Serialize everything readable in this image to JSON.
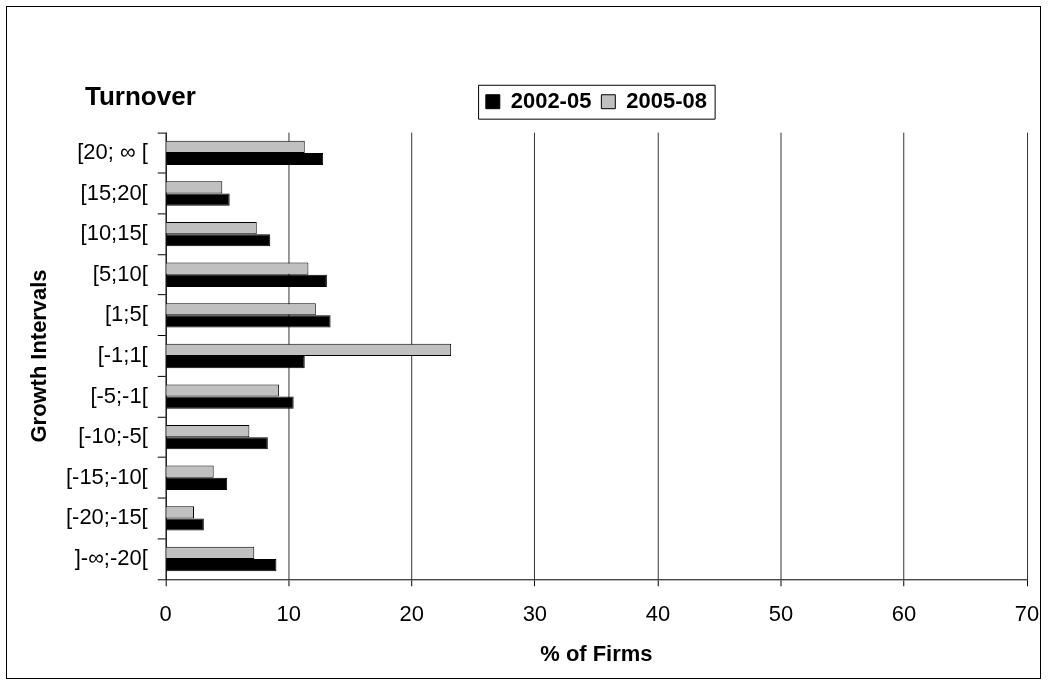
{
  "chart_data": {
    "type": "bar",
    "orientation": "horizontal",
    "title": "Turnover",
    "xlabel": "% of Firms",
    "ylabel": "Growth Intervals",
    "categories": [
      "[20; ∞ [",
      "[15;20[",
      "[10;15[",
      "[5;10[",
      "[1;5[",
      "[-1;1[",
      "[-5;-1[",
      "[-10;-5[",
      "[-15;-10[",
      "[-20;-15[",
      "]-∞;-20["
    ],
    "series": [
      {
        "name": "2002-05",
        "color": "#000000",
        "values": [
          12.8,
          5.2,
          8.5,
          13.1,
          13.4,
          11.3,
          10.4,
          8.3,
          5.0,
          3.1,
          9.0
        ]
      },
      {
        "name": "2005-08",
        "color": "#c0c0c0",
        "values": [
          11.3,
          4.6,
          7.4,
          11.6,
          12.2,
          23.2,
          9.2,
          6.8,
          3.9,
          2.3,
          7.2
        ]
      }
    ],
    "xlim": [
      0,
      70
    ],
    "xticks": [
      0,
      10,
      20,
      30,
      40,
      50,
      60,
      70
    ],
    "grid": "x",
    "legend": "top"
  }
}
